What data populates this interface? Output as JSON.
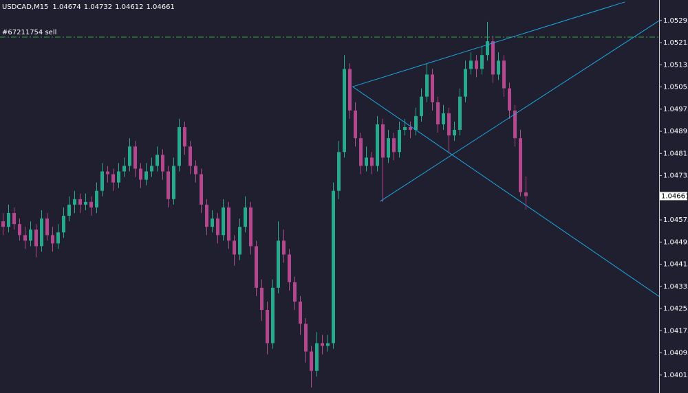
{
  "chart_data": {
    "type": "candlestick",
    "symbol": "USDCAD,M15",
    "ylim": [
      1.0395,
      1.05369
    ],
    "yticks": [
      1.05295,
      1.05215,
      1.05135,
      1.05055,
      1.04975,
      1.04895,
      1.04815,
      1.04735,
      1.04575,
      1.04495,
      1.04415,
      1.04335,
      1.04255,
      1.04175,
      1.04095,
      1.04015
    ],
    "series": [
      {
        "up_color": "#26a98d",
        "down_color": "#b3488e",
        "ohlc": [
          [
            1.0457,
            1.046,
            1.0452,
            1.0455
          ],
          [
            1.0455,
            1.0463,
            1.0453,
            1.046
          ],
          [
            1.046,
            1.0462,
            1.0454,
            1.0456
          ],
          [
            1.0456,
            1.0458,
            1.045,
            1.0452
          ],
          [
            1.0452,
            1.0455,
            1.0447,
            1.045
          ],
          [
            1.045,
            1.0457,
            1.0448,
            1.0454
          ],
          [
            1.0454,
            1.0456,
            1.0444,
            1.0448
          ],
          [
            1.0448,
            1.0461,
            1.0446,
            1.0458
          ],
          [
            1.0458,
            1.046,
            1.045,
            1.0452
          ],
          [
            1.0452,
            1.0455,
            1.0446,
            1.0449
          ],
          [
            1.0449,
            1.0456,
            1.0447,
            1.0453
          ],
          [
            1.0453,
            1.0462,
            1.0451,
            1.0459
          ],
          [
            1.0459,
            1.0466,
            1.0457,
            1.0463
          ],
          [
            1.0463,
            1.0468,
            1.046,
            1.0465
          ],
          [
            1.0465,
            1.0467,
            1.046,
            1.0463
          ],
          [
            1.0463,
            1.0467,
            1.0461,
            1.0464
          ],
          [
            1.0464,
            1.0466,
            1.0459,
            1.0462
          ],
          [
            1.0462,
            1.0471,
            1.046,
            1.0468
          ],
          [
            1.0468,
            1.0478,
            1.0466,
            1.0475
          ],
          [
            1.0475,
            1.0477,
            1.0471,
            1.0474
          ],
          [
            1.0474,
            1.0476,
            1.0468,
            1.0471
          ],
          [
            1.0471,
            1.0478,
            1.0469,
            1.0475
          ],
          [
            1.0475,
            1.048,
            1.0473,
            1.0477
          ],
          [
            1.0477,
            1.0487,
            1.0475,
            1.0484
          ],
          [
            1.0484,
            1.0486,
            1.0473,
            1.0476
          ],
          [
            1.0476,
            1.0478,
            1.0469,
            1.0472
          ],
          [
            1.0472,
            1.0478,
            1.047,
            1.0475
          ],
          [
            1.0475,
            1.048,
            1.0473,
            1.0477
          ],
          [
            1.0477,
            1.0484,
            1.0475,
            1.0481
          ],
          [
            1.0481,
            1.0483,
            1.0472,
            1.0475
          ],
          [
            1.0475,
            1.0477,
            1.0462,
            1.0465
          ],
          [
            1.0465,
            1.048,
            1.0463,
            1.0477
          ],
          [
            1.0477,
            1.0494,
            1.0475,
            1.0491
          ],
          [
            1.0491,
            1.0493,
            1.0481,
            1.0484
          ],
          [
            1.0484,
            1.0486,
            1.0474,
            1.0477
          ],
          [
            1.0477,
            1.0479,
            1.0471,
            1.0474
          ],
          [
            1.0474,
            1.0476,
            1.046,
            1.0463
          ],
          [
            1.0463,
            1.0465,
            1.0452,
            1.0455
          ],
          [
            1.0455,
            1.0461,
            1.0453,
            1.0458
          ],
          [
            1.0458,
            1.046,
            1.0449,
            1.0452
          ],
          [
            1.0452,
            1.0465,
            1.045,
            1.0462
          ],
          [
            1.0462,
            1.0464,
            1.0447,
            1.045
          ],
          [
            1.045,
            1.0452,
            1.0441,
            1.0445
          ],
          [
            1.0445,
            1.0458,
            1.0443,
            1.0455
          ],
          [
            1.0455,
            1.0466,
            1.0453,
            1.0462
          ],
          [
            1.0462,
            1.0464,
            1.0445,
            1.0448
          ],
          [
            1.0448,
            1.045,
            1.043,
            1.0433
          ],
          [
            1.0433,
            1.0436,
            1.0421,
            1.0425
          ],
          [
            1.0425,
            1.0428,
            1.0409,
            1.0413
          ],
          [
            1.0413,
            1.0436,
            1.0411,
            1.0433
          ],
          [
            1.0433,
            1.0457,
            1.0431,
            1.045
          ],
          [
            1.045,
            1.0454,
            1.0442,
            1.0445
          ],
          [
            1.0445,
            1.0447,
            1.0432,
            1.0435
          ],
          [
            1.0435,
            1.0437,
            1.0425,
            1.0428
          ],
          [
            1.0428,
            1.043,
            1.0416,
            1.042
          ],
          [
            1.042,
            1.0422,
            1.0406,
            1.041
          ],
          [
            1.041,
            1.0412,
            1.0397,
            1.0403
          ],
          [
            1.0403,
            1.0417,
            1.0401,
            1.0413
          ],
          [
            1.0413,
            1.0416,
            1.0409,
            1.0412
          ],
          [
            1.0412,
            1.0416,
            1.041,
            1.0413
          ],
          [
            1.0413,
            1.0471,
            1.0411,
            1.0468
          ],
          [
            1.0468,
            1.0486,
            1.0465,
            1.0482
          ],
          [
            1.0482,
            1.0517,
            1.048,
            1.0512
          ],
          [
            1.0512,
            1.0514,
            1.0494,
            1.0497
          ],
          [
            1.0497,
            1.05,
            1.0484,
            1.0487
          ],
          [
            1.0487,
            1.0489,
            1.0474,
            1.0477
          ],
          [
            1.0477,
            1.0484,
            1.0475,
            1.048
          ],
          [
            1.048,
            1.0482,
            1.0474,
            1.0477
          ],
          [
            1.0477,
            1.0495,
            1.0475,
            1.0492
          ],
          [
            1.0492,
            1.0494,
            1.0464,
            1.048
          ],
          [
            1.048,
            1.049,
            1.0478,
            1.0487
          ],
          [
            1.0487,
            1.0489,
            1.0479,
            1.0482
          ],
          [
            1.0482,
            1.0493,
            1.048,
            1.049
          ],
          [
            1.049,
            1.0494,
            1.0488,
            1.0491
          ],
          [
            1.0491,
            1.0493,
            1.0487,
            1.049
          ],
          [
            1.049,
            1.0498,
            1.0488,
            1.0495
          ],
          [
            1.0495,
            1.0505,
            1.0493,
            1.0502
          ],
          [
            1.0502,
            1.0514,
            1.05,
            1.051
          ],
          [
            1.051,
            1.0512,
            1.0497,
            1.05
          ],
          [
            1.05,
            1.0502,
            1.0489,
            1.0492
          ],
          [
            1.0492,
            1.0499,
            1.049,
            1.0496
          ],
          [
            1.0496,
            1.0498,
            1.0482,
            1.0488
          ],
          [
            1.0488,
            1.0493,
            1.0486,
            1.049
          ],
          [
            1.049,
            1.0505,
            1.0488,
            1.0502
          ],
          [
            1.0502,
            1.0515,
            1.05,
            1.0512
          ],
          [
            1.0512,
            1.0518,
            1.051,
            1.0515
          ],
          [
            1.0515,
            1.0517,
            1.0509,
            1.0512
          ],
          [
            1.0512,
            1.052,
            1.051,
            1.0517
          ],
          [
            1.0517,
            1.0529,
            1.0515,
            1.0522
          ],
          [
            1.0522,
            1.0524,
            1.0507,
            1.051
          ],
          [
            1.051,
            1.0518,
            1.0508,
            1.0515
          ],
          [
            1.0515,
            1.0517,
            1.0502,
            1.0505
          ],
          [
            1.0505,
            1.0507,
            1.0494,
            1.0497
          ],
          [
            1.0497,
            1.0499,
            1.0484,
            1.0487
          ],
          [
            1.0487,
            1.049,
            1.0466,
            1.04675
          ],
          [
            1.04674,
            1.04732,
            1.04612,
            1.04661
          ]
        ]
      }
    ],
    "order_line": {
      "label": "#67211754 sell",
      "price": 1.05235,
      "color": "#2fa83a"
    },
    "trendline_color": "#1ea7e1",
    "trendlines": [
      {
        "start": [
          63.5,
          1.05056
        ],
        "end": [
          113,
          1.05362
        ]
      },
      {
        "start": [
          63.5,
          1.05056
        ],
        "end": [
          119.25,
          1.04298
        ]
      },
      {
        "start": [
          68.5,
          1.04642
        ],
        "end": [
          119.25,
          1.05295
        ]
      }
    ]
  }
}
